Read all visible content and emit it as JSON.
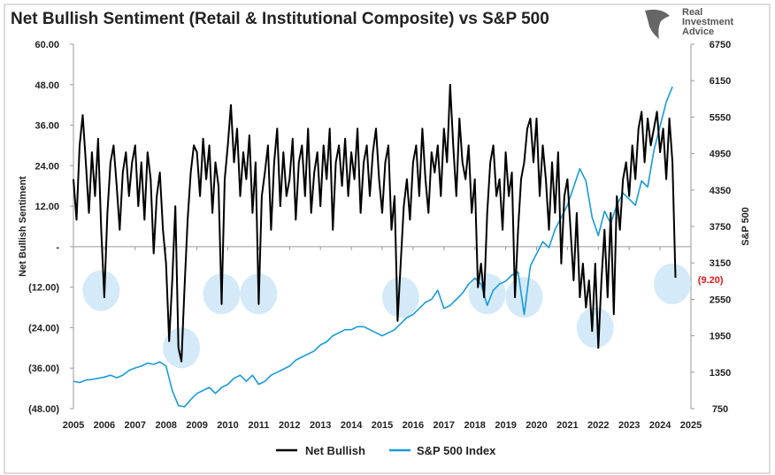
{
  "logo": {
    "text": [
      "Real",
      "Investment",
      "Advice"
    ]
  },
  "chart_data": {
    "type": "line",
    "title": "Net Bullish Sentiment (Retail & Institutional Composite) vs S&P 500",
    "ylabel": "Net Bullish Sentiment",
    "y2label": "S&P 500",
    "xlim": [
      2005,
      2025
    ],
    "ylim": [
      -48,
      60
    ],
    "y2lim": [
      750,
      6750
    ],
    "xticks": [
      "2005",
      "2006",
      "2007",
      "2008",
      "2009",
      "2010",
      "2011",
      "2012",
      "2013",
      "2014",
      "2015",
      "2016",
      "2017",
      "2018",
      "2019",
      "2020",
      "2021",
      "2022",
      "2023",
      "2024",
      "2025"
    ],
    "yticks": [
      "60.00",
      "48.00",
      "36.00",
      "24.00",
      "12.00",
      "-",
      "(12.00)",
      "(24.00)",
      "(36.00)",
      "(48.00)"
    ],
    "y2ticks": [
      "6750",
      "6150",
      "5550",
      "4950",
      "4350",
      "3750",
      "3150",
      "2550",
      "1950",
      "1350",
      "750"
    ],
    "grid": false,
    "legend": "bottom",
    "annotation": {
      "text": "(9.20)",
      "color": "#e0191b",
      "x": 2024.45,
      "y": -9.2
    },
    "highlight_circles": [
      [
        2005.9,
        -13
      ],
      [
        2008.5,
        -30
      ],
      [
        2009.8,
        -14
      ],
      [
        2011.0,
        -14
      ],
      [
        2015.6,
        -15
      ],
      [
        2018.4,
        -14
      ],
      [
        2019.6,
        -15
      ],
      [
        2021.9,
        -24
      ],
      [
        2024.4,
        -11
      ]
    ],
    "series": [
      {
        "name": "Net Bullish",
        "color": "#000000",
        "axis": "left",
        "x_start": 2005.0,
        "x_step": 0.1,
        "values": [
          20,
          8,
          30,
          39,
          25,
          10,
          28,
          15,
          32,
          5,
          -15,
          10,
          25,
          30,
          18,
          5,
          22,
          28,
          15,
          25,
          30,
          12,
          25,
          8,
          28,
          20,
          -2,
          15,
          22,
          5,
          -5,
          -28,
          -10,
          12,
          -30,
          -34,
          -12,
          8,
          22,
          30,
          28,
          15,
          32,
          20,
          30,
          10,
          25,
          18,
          -17,
          20,
          30,
          42,
          25,
          35,
          15,
          28,
          20,
          33,
          10,
          25,
          -17,
          15,
          22,
          30,
          5,
          25,
          35,
          12,
          28,
          15,
          20,
          32,
          8,
          25,
          30,
          15,
          35,
          10,
          22,
          28,
          12,
          30,
          20,
          35,
          5,
          25,
          30,
          18,
          32,
          15,
          28,
          20,
          35,
          10,
          25,
          30,
          15,
          28,
          35,
          20,
          10,
          25,
          30,
          5,
          15,
          -22,
          -5,
          12,
          20,
          8,
          25,
          30,
          15,
          35,
          20,
          10,
          28,
          22,
          30,
          15,
          35,
          25,
          48,
          30,
          15,
          38,
          25,
          20,
          30,
          10,
          20,
          -12,
          -5,
          -15,
          10,
          25,
          30,
          15,
          20,
          5,
          28,
          15,
          22,
          -15,
          5,
          20,
          25,
          35,
          38,
          25,
          38,
          15,
          30,
          20,
          5,
          25,
          10,
          28,
          -5,
          15,
          20,
          5,
          -10,
          10,
          -15,
          -5,
          -18,
          -10,
          -25,
          -5,
          -30,
          -10,
          5,
          -15,
          10,
          -20,
          15,
          5,
          20,
          25,
          15,
          30,
          20,
          35,
          40,
          25,
          38,
          30,
          35,
          40,
          28,
          35,
          20,
          38,
          25,
          -9.2
        ]
      },
      {
        "name": "S&P 500 Index",
        "color": "#1a9ad6",
        "axis": "right",
        "x_start": 2005.0,
        "x_step": 0.2,
        "values": [
          1200,
          1180,
          1220,
          1230,
          1250,
          1270,
          1300,
          1260,
          1300,
          1380,
          1420,
          1450,
          1500,
          1480,
          1520,
          1450,
          1050,
          800,
          780,
          900,
          1000,
          1050,
          1100,
          1000,
          1100,
          1150,
          1250,
          1300,
          1200,
          1300,
          1150,
          1200,
          1300,
          1350,
          1400,
          1450,
          1550,
          1600,
          1650,
          1700,
          1800,
          1850,
          1950,
          2000,
          2050,
          2050,
          2100,
          2100,
          2050,
          2000,
          1950,
          2000,
          2050,
          2150,
          2250,
          2300,
          2400,
          2500,
          2550,
          2700,
          2400,
          2450,
          2550,
          2650,
          2800,
          2900,
          2800,
          2450,
          2700,
          2800,
          2850,
          2950,
          3000,
          2300,
          3100,
          3300,
          3500,
          3400,
          3700,
          3900,
          4100,
          4400,
          4700,
          4500,
          3900,
          3600,
          4000,
          3800,
          4100,
          4300,
          4200,
          4100,
          4500,
          4400,
          5000,
          5400,
          5800,
          6050
        ]
      }
    ]
  }
}
